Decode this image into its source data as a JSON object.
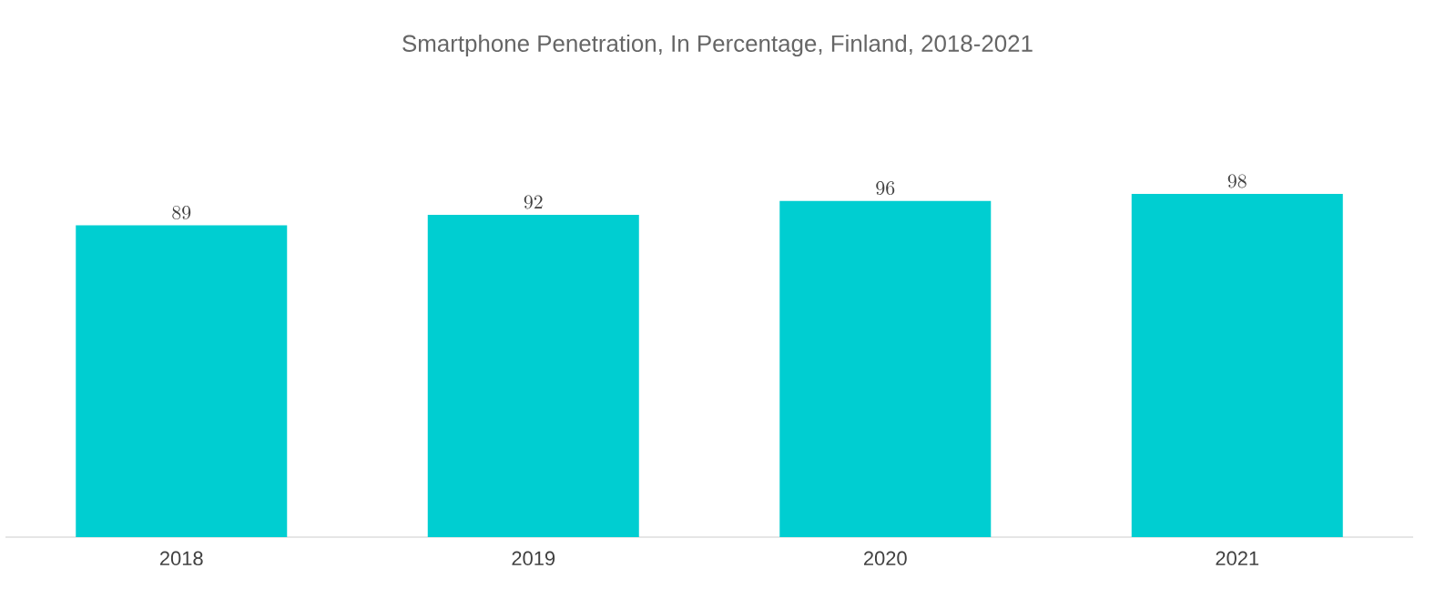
{
  "chart_data": {
    "type": "bar",
    "title": "Smartphone Penetration, In Percentage, Finland, 2018-2021",
    "categories": [
      "2018",
      "2019",
      "2020",
      "2021"
    ],
    "values": [
      89,
      92,
      96,
      98
    ],
    "color": "#00ced1",
    "data_labels": true
  }
}
